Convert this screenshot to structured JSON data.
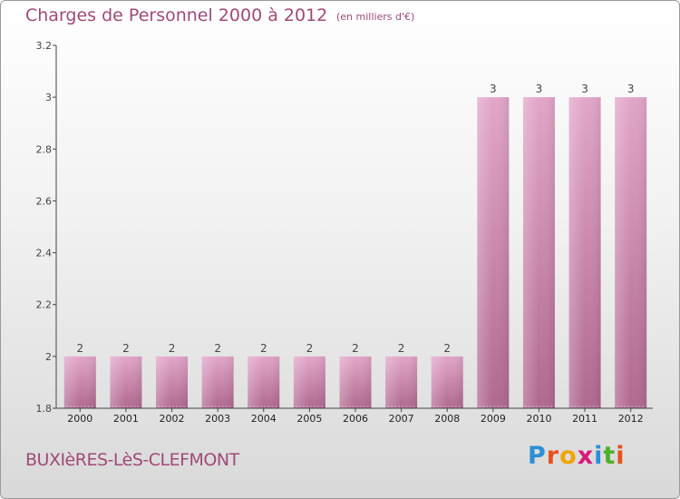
{
  "title": "Charges de Personnel 2000 à 2012",
  "subtitle": "(en milliers d'€)",
  "commune": "BUXIèRES-LèS-CLEFMONT",
  "logo": {
    "text": "Proxiti",
    "letter_colors": [
      "#2b8fd6",
      "#e8501c",
      "#f0a500",
      "#d9197a",
      "#2b8fd6",
      "#4caf2a",
      "#e8501c"
    ]
  },
  "colors": {
    "bar": "#c97aa8",
    "text": "#a04a78",
    "axis": "#444444"
  },
  "chart_data": {
    "type": "bar",
    "categories": [
      "2000",
      "2001",
      "2002",
      "2003",
      "2004",
      "2005",
      "2006",
      "2007",
      "2008",
      "2009",
      "2010",
      "2011",
      "2012"
    ],
    "values": [
      2,
      2,
      2,
      2,
      2,
      2,
      2,
      2,
      2,
      3,
      3,
      3,
      3
    ],
    "data_labels": [
      "2",
      "2",
      "2",
      "2",
      "2",
      "2",
      "2",
      "2",
      "2",
      "3",
      "3",
      "3",
      "3"
    ],
    "ylim": [
      1.8,
      3.2
    ],
    "yticks": [
      1.8,
      2,
      2.2,
      2.4,
      2.6,
      2.8,
      3,
      3.2
    ],
    "ytick_labels": [
      "1.8",
      "2",
      "2.2",
      "2.4",
      "2.6",
      "2.8",
      "3",
      "3.2"
    ],
    "title": "Charges de Personnel 2000 à 2012",
    "xlabel": "",
    "ylabel": ""
  }
}
